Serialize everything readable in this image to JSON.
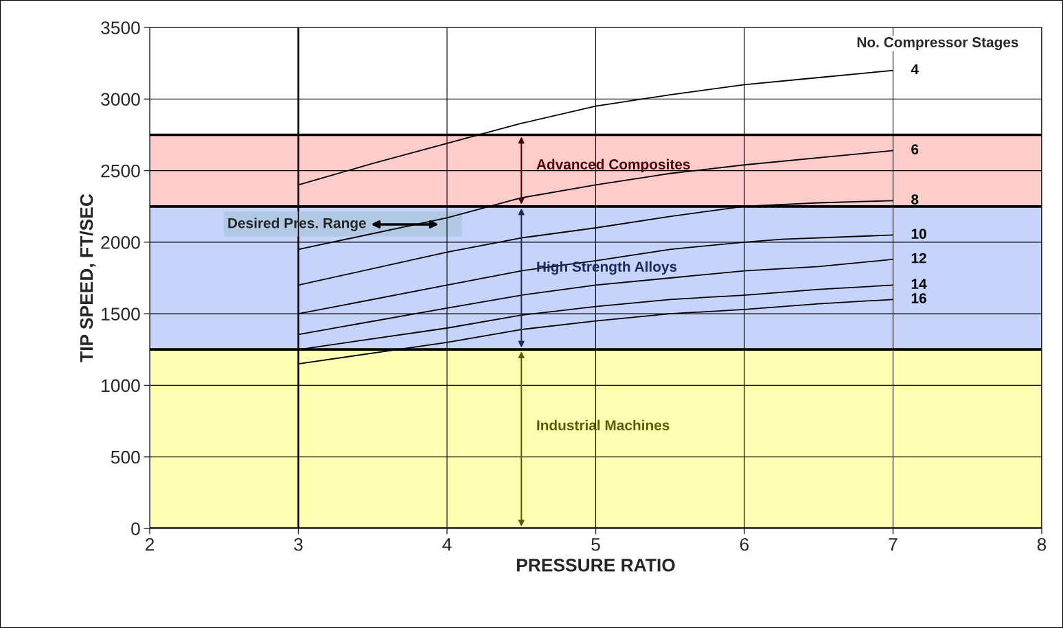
{
  "chart_data": {
    "type": "line",
    "xlabel": "PRESSURE RATIO",
    "ylabel": "TIP SPEED, FT/SEC",
    "legend_title": "No. Compressor Stages",
    "xlim": [
      2,
      8
    ],
    "xticks": [
      2,
      3,
      4,
      5,
      6,
      7,
      8
    ],
    "ylim": [
      0,
      3500
    ],
    "yticks": [
      0,
      500,
      1000,
      1500,
      2000,
      2500,
      3000,
      3500
    ],
    "grid": true,
    "legend": false,
    "marker": "none",
    "line_style": "solid",
    "series": [
      {
        "name": "4",
        "color": "#000000",
        "x": [
          3,
          3.5,
          4,
          4.5,
          5,
          5.5,
          6,
          6.5,
          7
        ],
        "values": [
          2400,
          2550,
          2690,
          2830,
          2950,
          3030,
          3100,
          3150,
          3200
        ]
      },
      {
        "name": "6",
        "color": "#000000",
        "x": [
          3,
          4,
          4.5,
          5,
          5.5,
          6,
          7
        ],
        "values": [
          1950,
          2170,
          2310,
          2400,
          2480,
          2540,
          2640
        ]
      },
      {
        "name": "8",
        "color": "#000000",
        "x": [
          3,
          4,
          4.5,
          5,
          5.5,
          6,
          6.5,
          7
        ],
        "values": [
          1700,
          1930,
          2030,
          2100,
          2180,
          2250,
          2275,
          2290
        ]
      },
      {
        "name": "10",
        "color": "#000000",
        "x": [
          3,
          4,
          4.5,
          5,
          5.5,
          6,
          6.25,
          7
        ],
        "values": [
          1500,
          1700,
          1800,
          1870,
          1950,
          2000,
          2020,
          2050
        ]
      },
      {
        "name": "12",
        "color": "#000000",
        "x": [
          3,
          4,
          4.5,
          5,
          5.5,
          6,
          6.5,
          7
        ],
        "values": [
          1355,
          1540,
          1630,
          1700,
          1750,
          1800,
          1830,
          1880
        ]
      },
      {
        "name": "14",
        "color": "#000000",
        "x": [
          3,
          4,
          4.5,
          5,
          5.5,
          6,
          6.5,
          7
        ],
        "values": [
          1250,
          1400,
          1490,
          1550,
          1600,
          1630,
          1670,
          1700
        ]
      },
      {
        "name": "16",
        "color": "#000000",
        "x": [
          3,
          4,
          4.5,
          5,
          5.5,
          6,
          6.5,
          7
        ],
        "values": [
          1150,
          1300,
          1390,
          1450,
          1500,
          1530,
          1570,
          1600
        ]
      }
    ],
    "bands": [
      {
        "axis": "y",
        "from": 0,
        "to": 1250,
        "label": "Industrial Machines",
        "color": "#ffffb3"
      },
      {
        "axis": "y",
        "from": 1250,
        "to": 2250,
        "label": "High Strength Alloys",
        "color": "#c6d3fb"
      },
      {
        "axis": "y",
        "from": 2250,
        "to": 2750,
        "label": "Advanced Composites",
        "color": "#ffcccc"
      }
    ],
    "ref_lines": [
      {
        "axis": "x",
        "value": 3,
        "color": "#000000"
      }
    ],
    "annotations": [
      "Desired Pres. Range"
    ]
  }
}
